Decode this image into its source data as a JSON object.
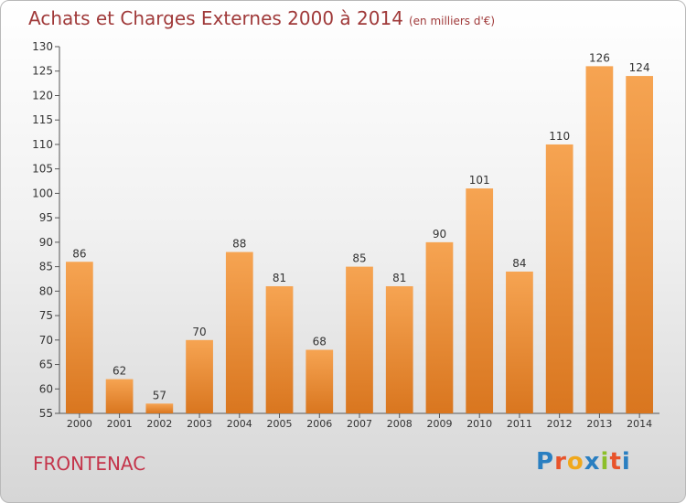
{
  "title": "Achats et Charges Externes 2000 à 2014",
  "subtitle": "(en milliers d'€)",
  "commune": "FRONTENAC",
  "logo": {
    "text": "Proxiti",
    "letter_colors": [
      "#2a7fc1",
      "#e8542b",
      "#f0a81c",
      "#2a7fc1",
      "#8cbf2a",
      "#e8542b",
      "#2a7fc1"
    ]
  },
  "colors": {
    "bar_top": "#f6a452",
    "bar_bottom": "#d9761f",
    "title": "#a03a3a",
    "commune": "#c4344a"
  },
  "chart_data": {
    "type": "bar",
    "categories": [
      "2000",
      "2001",
      "2002",
      "2003",
      "2004",
      "2005",
      "2006",
      "2007",
      "2008",
      "2009",
      "2010",
      "2011",
      "2012",
      "2013",
      "2014"
    ],
    "values": [
      86,
      62,
      57,
      70,
      88,
      81,
      68,
      85,
      81,
      90,
      101,
      84,
      110,
      126,
      124
    ],
    "ylim": [
      55,
      130
    ],
    "yticks": [
      55,
      60,
      65,
      70,
      75,
      80,
      85,
      90,
      95,
      100,
      105,
      110,
      115,
      120,
      125,
      130
    ],
    "grid": false,
    "xlabel": "",
    "ylabel": ""
  }
}
